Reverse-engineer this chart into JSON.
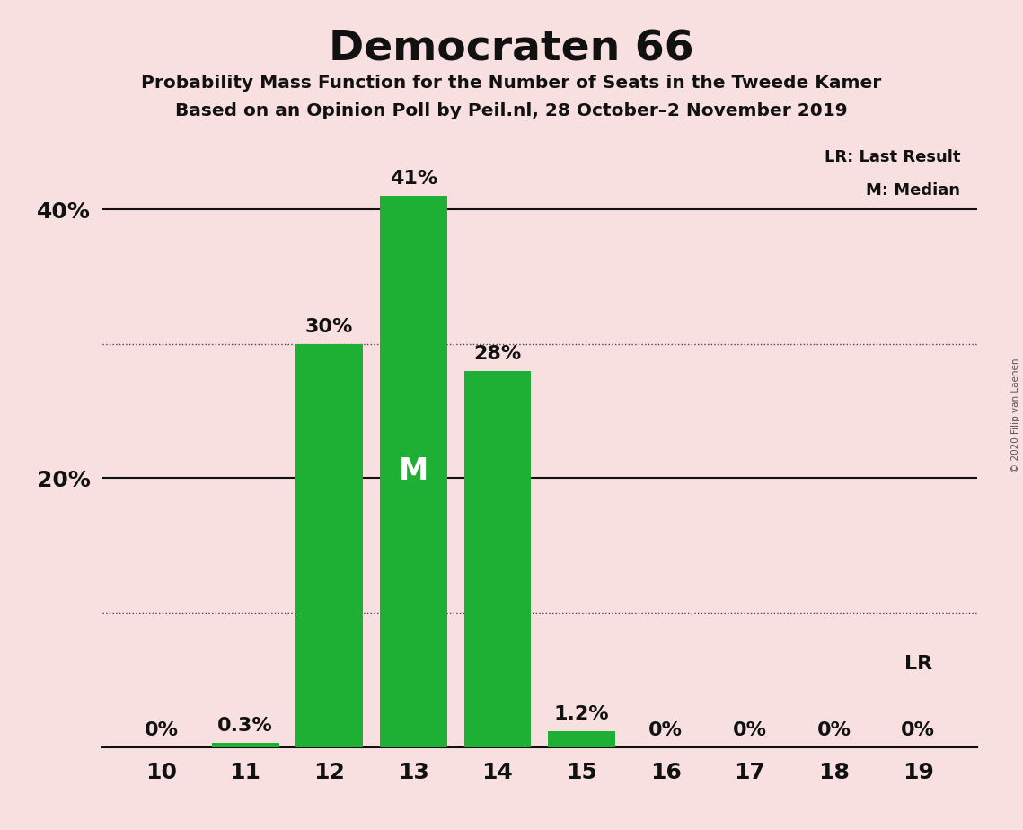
{
  "title": "Democraten 66",
  "subtitle1": "Probability Mass Function for the Number of Seats in the Tweede Kamer",
  "subtitle2": "Based on an Opinion Poll by Peil.nl, 28 October–2 November 2019",
  "copyright": "© 2020 Filip van Laenen",
  "categories": [
    10,
    11,
    12,
    13,
    14,
    15,
    16,
    17,
    18,
    19
  ],
  "values": [
    0.0,
    0.3,
    30.0,
    41.0,
    28.0,
    1.2,
    0.0,
    0.0,
    0.0,
    0.0
  ],
  "bar_color": "#1db035",
  "bar_labels": [
    "0%",
    "0.3%",
    "30%",
    "41%",
    "28%",
    "1.2%",
    "0%",
    "0%",
    "0%",
    "0%"
  ],
  "median_bar": 13,
  "last_result_bar": 19,
  "background_color": "#f9e0e0",
  "ylim": [
    0,
    46
  ],
  "dotted_yticks": [
    10,
    30
  ],
  "solid_yticks": [
    20,
    40
  ],
  "ytick_labels": {
    "20": "20%",
    "40": "40%"
  },
  "legend_lr": "LR: Last Result",
  "legend_m": "M: Median",
  "lr_annotation": "LR",
  "median_label": "M",
  "bar_width": 0.8
}
